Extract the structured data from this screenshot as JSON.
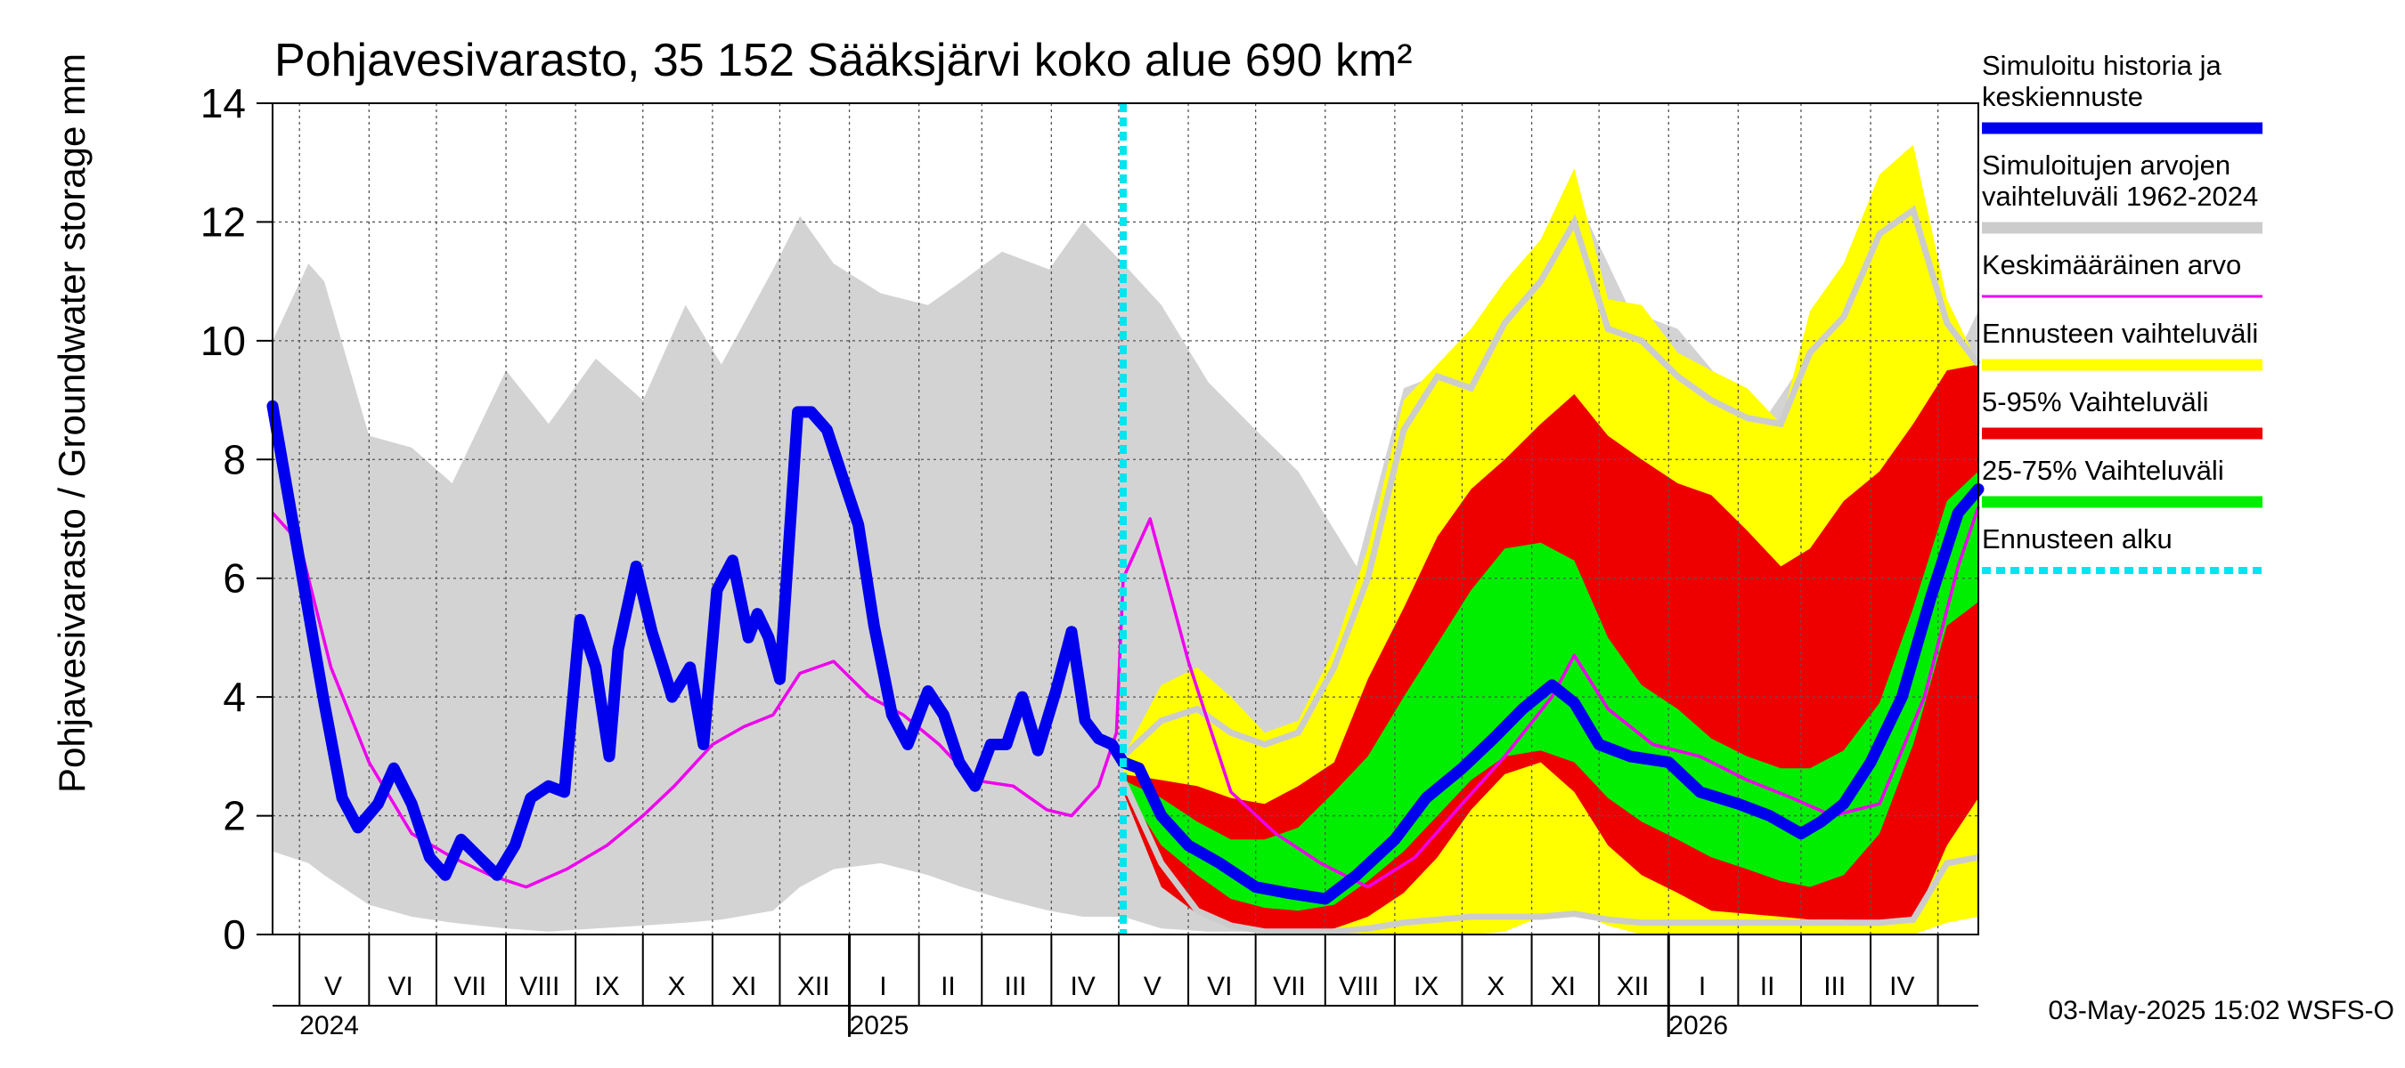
{
  "chart_data": {
    "type": "area",
    "title": "Pohjavesivarasto, 35 152 Sääksjärvi koko alue 690 km²",
    "ylabel": "Pohjavesivarasto / Groundwater storage   mm",
    "ylim": [
      0,
      14
    ],
    "yticks": [
      0,
      2,
      4,
      6,
      8,
      10,
      12,
      14
    ],
    "grid": true,
    "legend_position": "right",
    "timestamp": "03-May-2025 15:02 WSFS-O",
    "forecast_start": "2025-05-03",
    "x_start": "2024-04-19",
    "x_end": "2026-05-19",
    "year_labels": [
      {
        "label": "2024",
        "date": "2024-05-01"
      },
      {
        "label": "2025",
        "date": "2025-01-01"
      },
      {
        "label": "2026",
        "date": "2026-01-01"
      }
    ],
    "month_labels": [
      {
        "label": "V",
        "date": "2024-05-16"
      },
      {
        "label": "VI",
        "date": "2024-06-15"
      },
      {
        "label": "VII",
        "date": "2024-07-16"
      },
      {
        "label": "VIII",
        "date": "2024-08-16"
      },
      {
        "label": "IX",
        "date": "2024-09-15"
      },
      {
        "label": "X",
        "date": "2024-10-16"
      },
      {
        "label": "XI",
        "date": "2024-11-15"
      },
      {
        "label": "XII",
        "date": "2024-12-16"
      },
      {
        "label": "I",
        "date": "2025-01-16"
      },
      {
        "label": "II",
        "date": "2025-02-14"
      },
      {
        "label": "III",
        "date": "2025-03-16"
      },
      {
        "label": "IV",
        "date": "2025-04-15"
      },
      {
        "label": "V",
        "date": "2025-05-16"
      },
      {
        "label": "VI",
        "date": "2025-06-15"
      },
      {
        "label": "VII",
        "date": "2025-07-16"
      },
      {
        "label": "VIII",
        "date": "2025-08-16"
      },
      {
        "label": "IX",
        "date": "2025-09-15"
      },
      {
        "label": "X",
        "date": "2025-10-16"
      },
      {
        "label": "XI",
        "date": "2025-11-15"
      },
      {
        "label": "XII",
        "date": "2025-12-16"
      },
      {
        "label": "I",
        "date": "2026-01-16"
      },
      {
        "label": "II",
        "date": "2026-02-14"
      },
      {
        "label": "III",
        "date": "2026-03-16"
      },
      {
        "label": "IV",
        "date": "2026-04-15"
      }
    ],
    "month_boundaries": [
      "2024-05-01",
      "2024-06-01",
      "2024-07-01",
      "2024-08-01",
      "2024-09-01",
      "2024-10-01",
      "2024-11-01",
      "2024-12-01",
      "2025-01-01",
      "2025-02-01",
      "2025-03-01",
      "2025-04-01",
      "2025-05-01",
      "2025-06-01",
      "2025-07-01",
      "2025-08-01",
      "2025-09-01",
      "2025-10-01",
      "2025-11-01",
      "2025-12-01",
      "2026-01-01",
      "2026-02-01",
      "2026-03-01",
      "2026-04-01",
      "2026-05-01"
    ],
    "legend": [
      {
        "label": "Simuloitu historia ja keskiennuste",
        "color": "#0000ee",
        "style": "thick"
      },
      {
        "label": "Simuloitujen arvojen vaihteluväli 1962-2024",
        "color": "#cccccc",
        "style": "thick"
      },
      {
        "label": "Keskimääräinen arvo",
        "color": "#ee00ee",
        "style": "thin"
      },
      {
        "label": "Ennusteen vaihteluväli",
        "color": "#ffff00",
        "style": "thick"
      },
      {
        "label": "5-95% Vaihteluväli",
        "color": "#ee0000",
        "style": "thick"
      },
      {
        "label": "25-75% Vaihteluväli",
        "color": "#00ee00",
        "style": "thick"
      },
      {
        "label": "Ennusteen alku",
        "color": "#00e5ee",
        "style": "dashed"
      }
    ],
    "history_range": {
      "x": [
        "2024-04-19",
        "2024-05-05",
        "2024-05-12",
        "2024-06-01",
        "2024-06-20",
        "2024-07-08",
        "2024-08-01",
        "2024-08-20",
        "2024-09-10",
        "2024-10-01",
        "2024-10-20",
        "2024-11-05",
        "2024-11-28",
        "2024-12-10",
        "2024-12-25",
        "2025-01-15",
        "2025-02-05",
        "2025-02-20",
        "2025-03-10",
        "2025-03-31",
        "2025-04-15",
        "2025-05-03",
        "2025-05-20",
        "2025-06-10",
        "2025-07-01",
        "2025-07-20",
        "2025-08-15",
        "2025-09-05",
        "2025-09-25",
        "2025-10-15",
        "2025-11-10",
        "2025-11-25",
        "2025-12-15",
        "2026-01-05",
        "2026-01-25",
        "2026-02-15",
        "2026-03-05",
        "2026-03-28",
        "2026-04-15",
        "2026-05-05",
        "2026-05-19"
      ],
      "upper": [
        10.0,
        11.3,
        11.0,
        8.4,
        8.2,
        7.6,
        9.5,
        8.6,
        9.7,
        9.0,
        10.6,
        9.6,
        11.2,
        12.1,
        11.3,
        10.8,
        10.6,
        11.0,
        11.5,
        11.2,
        12.0,
        11.3,
        10.6,
        9.3,
        8.5,
        7.8,
        6.2,
        9.2,
        9.5,
        9.8,
        10.8,
        12.1,
        10.5,
        10.2,
        9.3,
        8.8,
        9.8,
        10.8,
        11.6,
        9.4,
        10.5
      ],
      "lower": [
        1.4,
        1.2,
        1.0,
        0.5,
        0.3,
        0.2,
        0.1,
        0.05,
        0.1,
        0.15,
        0.2,
        0.25,
        0.4,
        0.8,
        1.1,
        1.2,
        1.0,
        0.8,
        0.6,
        0.4,
        0.3,
        0.3,
        0.1,
        0.05,
        0.05,
        0.05,
        0.1,
        0.15,
        0.2,
        0.2,
        0.3,
        0.3,
        0.3,
        0.3,
        0.3,
        0.25,
        0.2,
        0.2,
        0.25,
        1.4,
        1.3
      ]
    },
    "series": [
      {
        "name": "Simuloitu historia ja keskiennuste",
        "color": "#0000ee",
        "x": [
          "2024-04-19",
          "2024-05-01",
          "2024-05-12",
          "2024-05-20",
          "2024-05-27",
          "2024-06-05",
          "2024-06-12",
          "2024-06-20",
          "2024-06-28",
          "2024-07-05",
          "2024-07-12",
          "2024-07-20",
          "2024-07-28",
          "2024-08-05",
          "2024-08-12",
          "2024-08-20",
          "2024-08-27",
          "2024-09-03",
          "2024-09-10",
          "2024-09-16",
          "2024-09-20",
          "2024-09-28",
          "2024-10-05",
          "2024-10-10",
          "2024-10-14",
          "2024-10-22",
          "2024-10-28",
          "2024-11-03",
          "2024-11-10",
          "2024-11-17",
          "2024-11-21",
          "2024-11-26",
          "2024-12-01",
          "2024-12-09",
          "2024-12-15",
          "2024-12-22",
          "2024-12-29",
          "2025-01-05",
          "2025-01-12",
          "2025-01-20",
          "2025-01-27",
          "2025-02-05",
          "2025-02-12",
          "2025-02-19",
          "2025-02-26",
          "2025-03-05",
          "2025-03-12",
          "2025-03-19",
          "2025-03-26",
          "2025-04-03",
          "2025-04-10",
          "2025-04-16",
          "2025-04-22",
          "2025-04-28",
          "2025-05-03",
          "2025-05-10",
          "2025-05-20",
          "2025-06-01",
          "2025-06-15",
          "2025-07-01",
          "2025-07-15",
          "2025-08-01",
          "2025-08-15",
          "2025-09-01",
          "2025-09-15",
          "2025-10-01",
          "2025-10-15",
          "2025-10-28",
          "2025-11-10",
          "2025-11-20",
          "2025-12-01",
          "2025-12-15",
          "2026-01-01",
          "2026-01-15",
          "2026-02-01",
          "2026-02-15",
          "2026-03-01",
          "2026-03-10",
          "2026-03-20",
          "2026-04-01",
          "2026-04-15",
          "2026-04-28",
          "2026-05-10",
          "2026-05-19"
        ],
        "values": [
          8.9,
          6.3,
          3.9,
          2.3,
          1.8,
          2.2,
          2.8,
          2.2,
          1.3,
          1.0,
          1.6,
          1.3,
          1.0,
          1.5,
          2.3,
          2.5,
          2.4,
          5.3,
          4.5,
          3.0,
          4.8,
          6.2,
          5.1,
          4.5,
          4.0,
          4.5,
          3.2,
          5.8,
          6.3,
          5.0,
          5.4,
          5.0,
          4.3,
          8.8,
          8.8,
          8.5,
          7.7,
          6.9,
          5.2,
          3.7,
          3.2,
          4.1,
          3.7,
          2.9,
          2.5,
          3.2,
          3.2,
          4.0,
          3.1,
          4.1,
          5.1,
          3.6,
          3.3,
          3.2,
          2.9,
          2.8,
          2.0,
          1.5,
          1.2,
          0.8,
          0.7,
          0.6,
          1.0,
          1.6,
          2.3,
          2.8,
          3.3,
          3.8,
          4.2,
          3.9,
          3.2,
          3.0,
          2.9,
          2.4,
          2.2,
          2.0,
          1.7,
          1.9,
          2.2,
          2.9,
          4.0,
          5.7,
          7.1,
          7.5
        ]
      },
      {
        "name": "Keskimääräinen arvo",
        "color": "#ee00ee",
        "x": [
          "2024-04-19",
          "2024-05-01",
          "2024-05-15",
          "2024-06-01",
          "2024-06-20",
          "2024-07-08",
          "2024-07-25",
          "2024-08-10",
          "2024-08-28",
          "2024-09-15",
          "2024-10-01",
          "2024-10-15",
          "2024-11-01",
          "2024-11-15",
          "2024-11-28",
          "2024-12-10",
          "2024-12-25",
          "2025-01-10",
          "2025-01-25",
          "2025-02-10",
          "2025-02-25",
          "2025-03-15",
          "2025-03-30",
          "2025-04-10",
          "2025-04-22",
          "2025-04-30",
          "2025-05-03",
          "2025-05-15",
          "2025-06-01",
          "2025-06-20",
          "2025-07-10",
          "2025-07-30",
          "2025-08-20",
          "2025-09-10",
          "2025-10-01",
          "2025-10-20",
          "2025-11-10",
          "2025-11-20",
          "2025-12-05",
          "2025-12-25",
          "2026-01-15",
          "2026-02-05",
          "2026-02-25",
          "2026-03-15",
          "2026-04-05",
          "2026-04-25",
          "2026-05-10",
          "2026-05-19"
        ],
        "values": [
          7.1,
          6.6,
          4.5,
          2.9,
          1.7,
          1.3,
          1.0,
          0.8,
          1.1,
          1.5,
          2.0,
          2.5,
          3.2,
          3.5,
          3.7,
          4.4,
          4.6,
          4.0,
          3.7,
          3.2,
          2.6,
          2.5,
          2.1,
          2.0,
          2.5,
          3.4,
          6.0,
          7.0,
          4.6,
          2.4,
          1.7,
          1.2,
          0.8,
          1.3,
          2.2,
          3.0,
          4.0,
          4.7,
          3.8,
          3.2,
          3.0,
          2.6,
          2.3,
          2.0,
          2.2,
          4.0,
          6.2,
          7.2
        ]
      }
    ],
    "forecast_bands": {
      "x": [
        "2025-05-03",
        "2025-05-20",
        "2025-06-05",
        "2025-06-20",
        "2025-07-05",
        "2025-07-20",
        "2025-08-05",
        "2025-08-20",
        "2025-09-05",
        "2025-09-20",
        "2025-10-05",
        "2025-10-20",
        "2025-11-05",
        "2025-11-20",
        "2025-12-05",
        "2025-12-20",
        "2026-01-05",
        "2026-01-20",
        "2026-02-05",
        "2026-02-20",
        "2026-03-05",
        "2026-03-20",
        "2026-04-05",
        "2026-04-20",
        "2026-05-05",
        "2026-05-19"
      ],
      "min_max": {
        "color": "#ffff00",
        "upper": [
          3.0,
          4.2,
          4.5,
          4.0,
          3.4,
          3.6,
          4.8,
          6.5,
          9.0,
          9.6,
          10.2,
          11.0,
          11.7,
          12.9,
          10.7,
          10.6,
          9.8,
          9.5,
          9.2,
          8.6,
          10.5,
          11.3,
          12.8,
          13.3,
          10.7,
          9.6
        ],
        "lower": [
          2.6,
          1.8,
          0.5,
          0.2,
          0.05,
          0.05,
          0.0,
          0.0,
          0.0,
          0.0,
          0.0,
          0.05,
          0.3,
          0.4,
          0.15,
          0.0,
          0.0,
          0.0,
          0.0,
          0.0,
          0.0,
          0.0,
          0.0,
          0.0,
          0.2,
          0.3
        ]
      },
      "p05_p95": {
        "color": "#ee0000",
        "upper": [
          2.7,
          2.6,
          2.5,
          2.3,
          2.2,
          2.5,
          2.9,
          4.3,
          5.5,
          6.7,
          7.5,
          8.0,
          8.6,
          9.1,
          8.4,
          8.0,
          7.6,
          7.4,
          6.8,
          6.2,
          6.5,
          7.3,
          7.8,
          8.6,
          9.5,
          9.6
        ],
        "lower": [
          2.4,
          0.8,
          0.35,
          0.15,
          0.05,
          0.05,
          0.1,
          0.3,
          0.7,
          1.3,
          2.1,
          2.7,
          2.9,
          2.4,
          1.5,
          1.0,
          0.7,
          0.4,
          0.35,
          0.3,
          0.25,
          0.25,
          0.2,
          0.2,
          1.5,
          2.3
        ]
      },
      "p25_p75": {
        "color": "#00ee00",
        "upper": [
          2.6,
          2.3,
          1.9,
          1.6,
          1.6,
          1.8,
          2.4,
          3.0,
          4.0,
          4.9,
          5.8,
          6.5,
          6.6,
          6.3,
          5.0,
          4.2,
          3.8,
          3.3,
          3.0,
          2.8,
          2.8,
          3.1,
          3.9,
          5.5,
          7.3,
          7.8
        ],
        "lower": [
          2.5,
          1.5,
          1.0,
          0.6,
          0.45,
          0.4,
          0.5,
          0.9,
          1.4,
          2.0,
          2.6,
          3.0,
          3.1,
          2.9,
          2.3,
          1.9,
          1.6,
          1.3,
          1.1,
          0.9,
          0.8,
          1.0,
          1.7,
          3.2,
          5.2,
          5.6
        ]
      },
      "history_range_line": {
        "color": "#cccccc",
        "upper": [
          3.0,
          3.6,
          3.8,
          3.4,
          3.2,
          3.4,
          4.5,
          6.0,
          8.5,
          9.4,
          9.2,
          10.3,
          11.0,
          12.0,
          10.2,
          10.0,
          9.4,
          9.0,
          8.7,
          8.6,
          9.8,
          10.4,
          11.8,
          12.2,
          10.3,
          9.6
        ],
        "lower": [
          2.6,
          1.2,
          0.4,
          0.15,
          0.05,
          0.05,
          0.05,
          0.1,
          0.2,
          0.25,
          0.3,
          0.3,
          0.3,
          0.35,
          0.25,
          0.2,
          0.2,
          0.2,
          0.2,
          0.2,
          0.2,
          0.2,
          0.2,
          0.25,
          1.2,
          1.3
        ]
      }
    }
  }
}
